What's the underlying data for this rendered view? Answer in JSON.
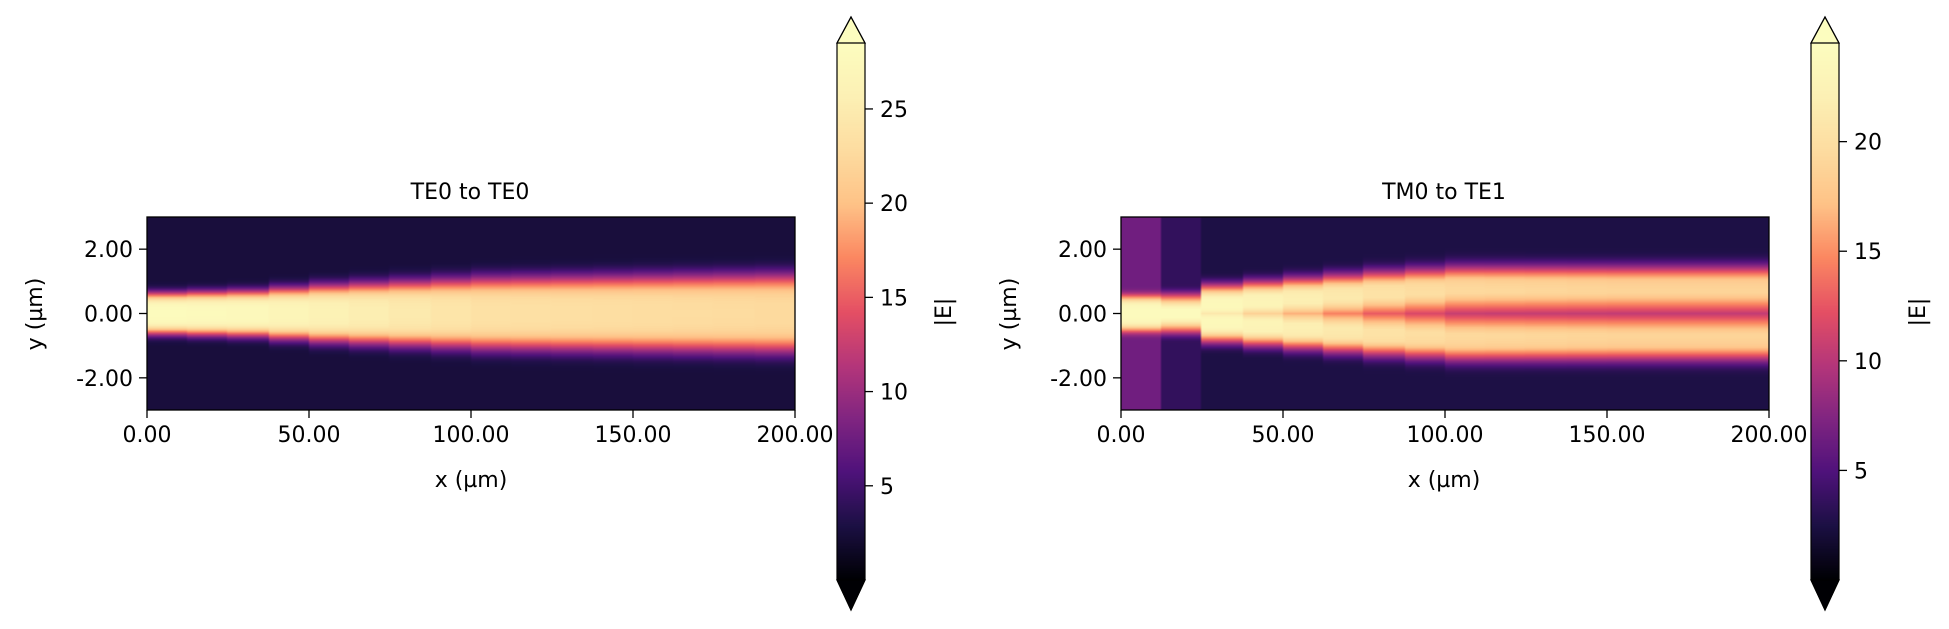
{
  "chart_data": [
    {
      "type": "heatmap",
      "title": "TE0 to TE0",
      "xlabel": "x (µm)",
      "ylabel": "y (µm)",
      "xlim": [
        0,
        200
      ],
      "ylim": [
        -3,
        3
      ],
      "x_ticks": [
        0,
        50,
        100,
        150,
        200
      ],
      "x_tick_labels": [
        "0.00",
        "50.00",
        "100.00",
        "150.00",
        "200.00"
      ],
      "y_ticks": [
        2,
        0,
        -2
      ],
      "y_tick_labels": [
        "2.00",
        "0.00",
        "-2.00"
      ],
      "colormap": "magma",
      "colorbar": {
        "label": "|E|",
        "range": [
          0,
          28.5
        ],
        "ticks": [
          5,
          10,
          15,
          20,
          25
        ],
        "tick_labels": [
          "5",
          "10",
          "15",
          "20",
          "25"
        ],
        "extend": "both"
      },
      "field_profile": {
        "description_x_um": [
          0,
          25,
          50,
          100,
          150,
          200
        ],
        "core_half_width_um": [
          0.55,
          0.6,
          0.75,
          0.95,
          1.0,
          1.05
        ],
        "peak_abs_e": [
          28,
          27.5,
          26,
          23.5,
          23,
          22.5
        ],
        "background_abs_e": 2.5
      }
    },
    {
      "type": "heatmap",
      "title": "TM0 to TE1",
      "xlabel": "x (µm)",
      "ylabel": "y (µm)",
      "xlim": [
        0,
        200
      ],
      "ylim": [
        -3,
        3
      ],
      "x_ticks": [
        0,
        50,
        100,
        150,
        200
      ],
      "x_tick_labels": [
        "0.00",
        "50.00",
        "100.00",
        "150.00",
        "200.00"
      ],
      "y_ticks": [
        2,
        0,
        -2
      ],
      "y_tick_labels": [
        "2.00",
        "0.00",
        "-2.00"
      ],
      "colormap": "magma",
      "colorbar": {
        "label": "|E|",
        "range": [
          0,
          24.5
        ],
        "ticks": [
          5,
          10,
          15,
          20
        ],
        "tick_labels": [
          "5",
          "10",
          "15",
          "20"
        ],
        "extend": "both"
      },
      "field_profile": {
        "description_x_um": [
          0,
          12.5,
          25,
          50,
          75,
          100,
          150,
          200
        ],
        "input_region_abs_e": 6.5,
        "input_region_end_um": 12.5,
        "transition_region_end_um": 25,
        "lobe_separation_um": [
          0,
          0,
          0.3,
          0.5,
          0.7,
          0.85,
          0.85,
          0.85
        ],
        "peak_abs_e": [
          24,
          24,
          23.5,
          22,
          20.5,
          19.5,
          19,
          19
        ],
        "background_abs_e": 2.5
      }
    }
  ]
}
